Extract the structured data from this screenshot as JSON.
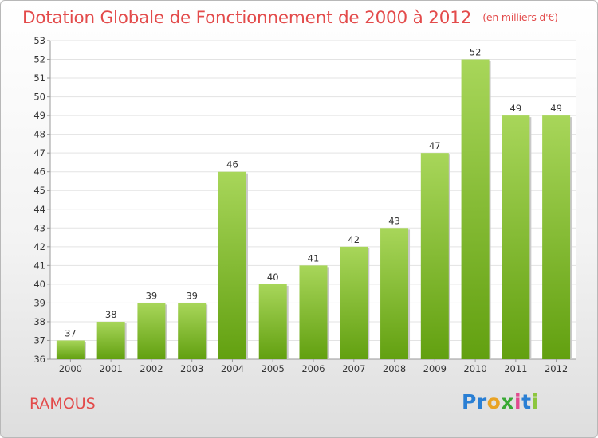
{
  "chart_data": {
    "type": "bar",
    "title": "Dotation Globale de Fonctionnement de 2000 à 2012",
    "subtitle": "(en milliers d'€)",
    "xlabel": "",
    "ylabel": "",
    "categories": [
      "2000",
      "2001",
      "2002",
      "2003",
      "2004",
      "2005",
      "2006",
      "2007",
      "2008",
      "2009",
      "2010",
      "2011",
      "2012"
    ],
    "values": [
      37,
      38,
      39,
      39,
      46,
      40,
      41,
      42,
      43,
      47,
      52,
      49,
      49
    ],
    "ylim": [
      36,
      53
    ],
    "yticks": [
      36,
      37,
      38,
      39,
      40,
      41,
      42,
      43,
      44,
      45,
      46,
      47,
      48,
      49,
      50,
      51,
      52,
      53
    ],
    "grid": true,
    "legend": "none",
    "bar_color_light": "#a8d65a",
    "bar_color_dark": "#62a010"
  },
  "place": "RAMOUS",
  "logo": {
    "p1": "Pr",
    "p2": "o",
    "p3": "x",
    "p4": "i",
    "p5": "t",
    "p6": "i"
  },
  "colors": {
    "title": "#e34b4b",
    "accent": "#e34b4b"
  }
}
